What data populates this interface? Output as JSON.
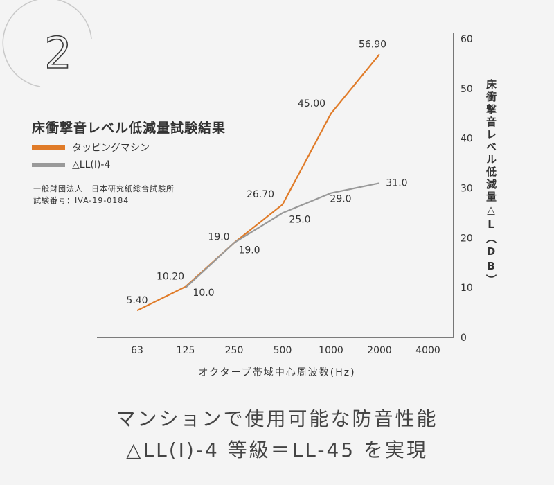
{
  "badge": {
    "number": "2"
  },
  "legend": {
    "title": "床衝撃音レベル低減量試験結果",
    "items": [
      {
        "label": "タッピングマシン",
        "color": "#e07b28"
      },
      {
        "label": "△LL(I)-4",
        "color": "#999999"
      }
    ],
    "note_line1": "一般財団法人　日本研究紙総合試験所",
    "note_line2": "試験番号：IVA-19-0184"
  },
  "caption": {
    "line1": "マンションで使用可能な防音性能",
    "line2": "△LL(I)-4 等級＝LL-45 を実現"
  },
  "chart_data": {
    "type": "line",
    "categories": [
      "63",
      "125",
      "250",
      "500",
      "1000",
      "2000",
      "4000"
    ],
    "xlabel": "オクターブ帯域中心周波数(Hz)",
    "ylabel": "床衝撃音レベル低減量△L（DB）",
    "ylim": [
      0,
      60
    ],
    "yticks": [
      "0",
      "10",
      "20",
      "30",
      "40",
      "50",
      "60"
    ],
    "y_axis_side": "right",
    "series": [
      {
        "name": "タッピングマシン",
        "color": "#e07b28",
        "values": [
          5.4,
          10.2,
          19.0,
          26.7,
          45.0,
          56.9,
          null
        ],
        "labels": [
          "5.40",
          "10.20",
          "19.0",
          "26.70",
          "45.00",
          "56.90",
          ""
        ]
      },
      {
        "name": "△LL(I)-4",
        "color": "#999999",
        "values": [
          null,
          10.0,
          19.0,
          25.0,
          29.0,
          31.0,
          null
        ],
        "labels": [
          "",
          "10.0",
          "19.0",
          "25.0",
          "29.0",
          "31.0",
          ""
        ]
      }
    ]
  }
}
